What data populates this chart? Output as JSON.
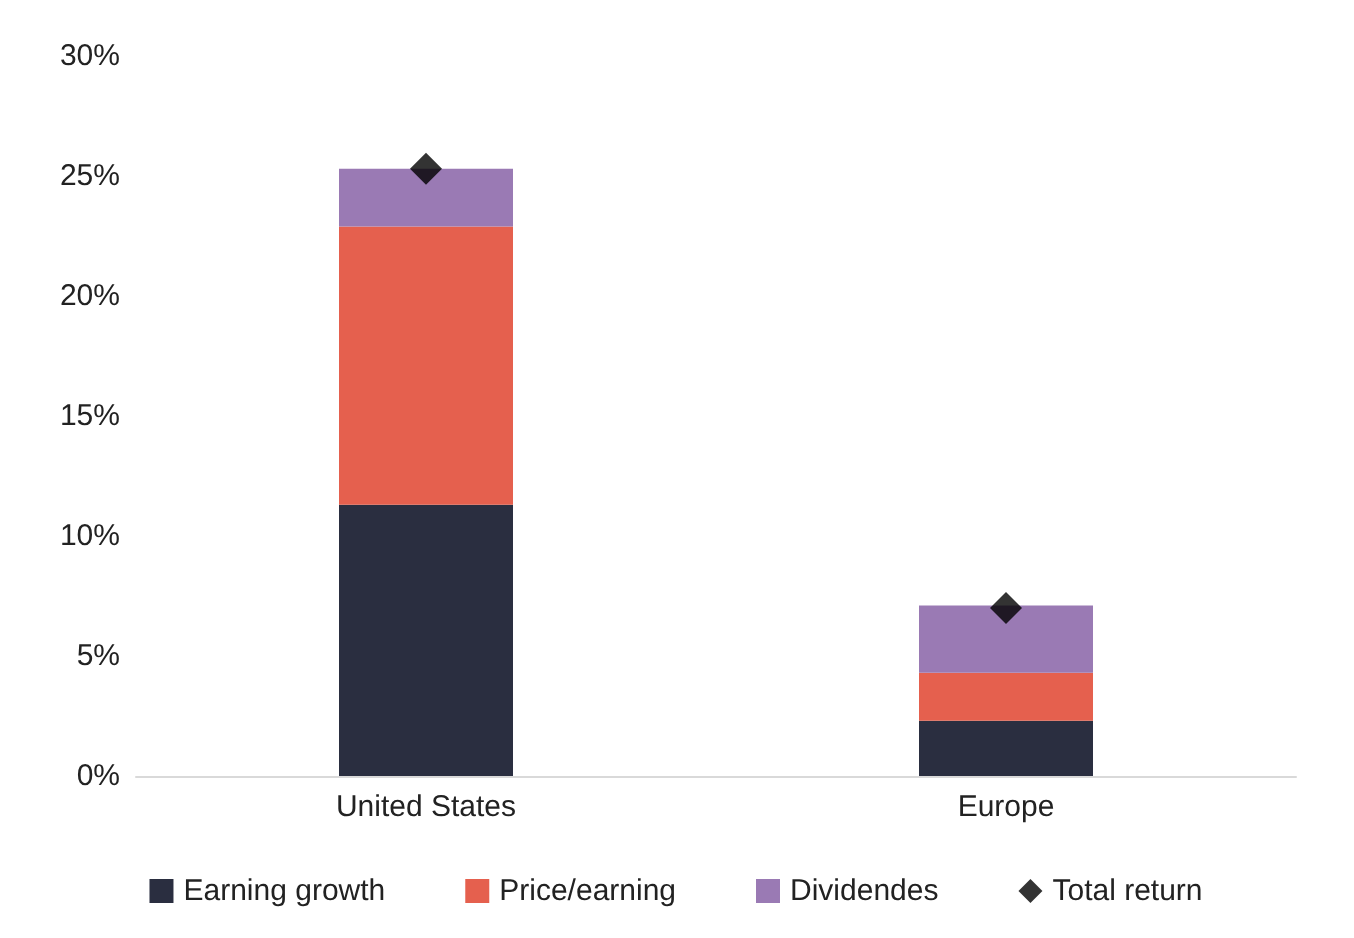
{
  "chart_data": {
    "type": "bar",
    "stacked": true,
    "categories": [
      "United States",
      "Europe"
    ],
    "series": [
      {
        "name": "Earning growth",
        "color": "#2a2e40",
        "values": [
          11.3,
          2.3
        ]
      },
      {
        "name": "Price/earning",
        "color": "#e5604e",
        "values": [
          11.6,
          2.0
        ]
      },
      {
        "name": "Dividendes",
        "color": "#9a7ab4",
        "values": [
          2.4,
          2.8
        ]
      },
      {
        "name": "Total return",
        "type": "scatter",
        "marker": "diamond",
        "color": "#000000",
        "x": [
          "United States",
          "Europe"
        ],
        "values": [
          25.3,
          7.0
        ]
      }
    ],
    "ylim": [
      0,
      30
    ],
    "yticks": [
      {
        "value": 0,
        "label": "0%"
      },
      {
        "value": 5,
        "label": "5%"
      },
      {
        "value": 10,
        "label": "10%"
      },
      {
        "value": 15,
        "label": "15%"
      },
      {
        "value": 20,
        "label": "20%"
      },
      {
        "value": 25,
        "label": "25%"
      },
      {
        "value": 30,
        "label": "30%"
      }
    ],
    "grid": false,
    "legend": "bottom"
  }
}
